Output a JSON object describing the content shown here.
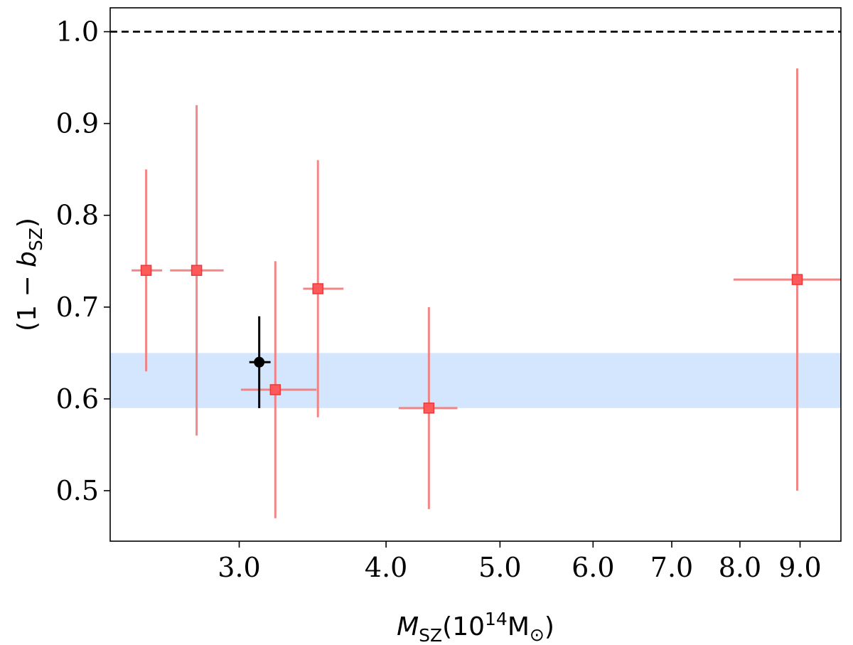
{
  "chart_data": {
    "type": "scatter",
    "xscale": "log",
    "xlim": [
      2.33,
      9.75
    ],
    "ylim": [
      0.445,
      1.026
    ],
    "xticks": [
      {
        "value": 3.0,
        "label": "3.0"
      },
      {
        "value": 4.0,
        "label": "4.0"
      },
      {
        "value": 5.0,
        "label": "5.0"
      },
      {
        "value": 6.0,
        "label": "6.0"
      },
      {
        "value": 7.0,
        "label": "7.0"
      },
      {
        "value": 8.0,
        "label": "8.0"
      },
      {
        "value": 9.0,
        "label": "9.0"
      }
    ],
    "yticks": [
      {
        "value": 0.5,
        "label": "0.5"
      },
      {
        "value": 0.6,
        "label": "0.6"
      },
      {
        "value": 0.7,
        "label": "0.7"
      },
      {
        "value": 0.8,
        "label": "0.8"
      },
      {
        "value": 0.9,
        "label": "0.9"
      },
      {
        "value": 1.0,
        "label": "1.0"
      }
    ],
    "xlabel": {
      "main": "M",
      "sub": "SZ",
      "rest": "(10",
      "sup": "14",
      "unit": "M",
      "unit_sub": "⊙",
      "close": ")"
    },
    "ylabel": {
      "prefix": "(1 − ",
      "var": "b",
      "sub": "SZ",
      "close": ")"
    },
    "reference_line": {
      "y": 1.0,
      "style": "dashed",
      "color": "#000000"
    },
    "band": {
      "y_low": 0.59,
      "y_high": 0.65,
      "color": "#d4e6fd"
    },
    "series": [
      {
        "marker": "square",
        "color": "#f07a7a",
        "points": [
          {
            "x": 2.5,
            "y": 0.74,
            "xlo": 2.43,
            "xhi": 2.58,
            "ylo": 0.63,
            "yhi": 0.85
          },
          {
            "x": 2.76,
            "y": 0.74,
            "xlo": 2.62,
            "xhi": 2.91,
            "ylo": 0.56,
            "yhi": 0.92
          },
          {
            "x": 3.22,
            "y": 0.61,
            "xlo": 3.01,
            "xhi": 3.49,
            "ylo": 0.47,
            "yhi": 0.75
          },
          {
            "x": 3.5,
            "y": 0.72,
            "xlo": 3.4,
            "xhi": 3.68,
            "ylo": 0.58,
            "yhi": 0.86
          },
          {
            "x": 4.35,
            "y": 0.59,
            "xlo": 4.1,
            "xhi": 4.6,
            "ylo": 0.48,
            "yhi": 0.7
          },
          {
            "x": 8.95,
            "y": 0.73,
            "xlo": 7.9,
            "xhi": 9.75,
            "ylo": 0.5,
            "yhi": 0.96
          }
        ]
      },
      {
        "marker": "circle",
        "color": "#000000",
        "points": [
          {
            "x": 3.12,
            "y": 0.64,
            "xlo": 3.06,
            "xhi": 3.19,
            "ylo": 0.59,
            "yhi": 0.69
          }
        ]
      }
    ]
  }
}
